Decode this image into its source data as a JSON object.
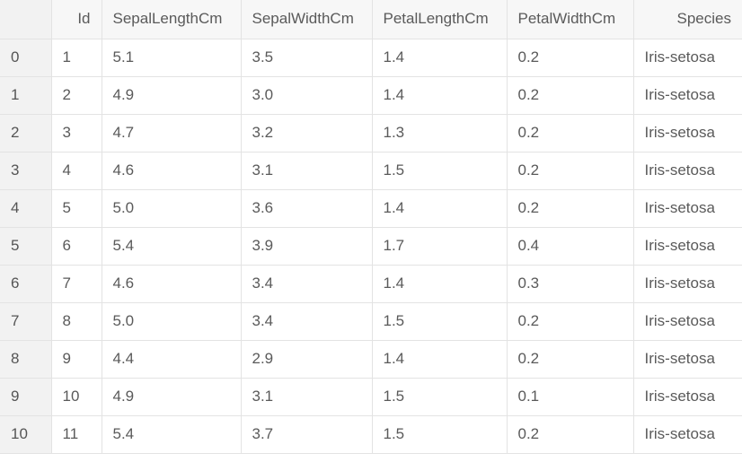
{
  "table": {
    "columns": [
      {
        "label": "",
        "align": "left"
      },
      {
        "label": "Id",
        "align": "right"
      },
      {
        "label": "SepalLengthCm",
        "align": "left"
      },
      {
        "label": "SepalWidthCm",
        "align": "left"
      },
      {
        "label": "PetalLengthCm",
        "align": "left"
      },
      {
        "label": "PetalWidthCm",
        "align": "left"
      },
      {
        "label": "Species",
        "align": "right"
      }
    ],
    "rows": [
      [
        "0",
        "1",
        "5.1",
        "3.5",
        "1.4",
        "0.2",
        "Iris-setosa"
      ],
      [
        "1",
        "2",
        "4.9",
        "3.0",
        "1.4",
        "0.2",
        "Iris-setosa"
      ],
      [
        "2",
        "3",
        "4.7",
        "3.2",
        "1.3",
        "0.2",
        "Iris-setosa"
      ],
      [
        "3",
        "4",
        "4.6",
        "3.1",
        "1.5",
        "0.2",
        "Iris-setosa"
      ],
      [
        "4",
        "5",
        "5.0",
        "3.6",
        "1.4",
        "0.2",
        "Iris-setosa"
      ],
      [
        "5",
        "6",
        "5.4",
        "3.9",
        "1.7",
        "0.4",
        "Iris-setosa"
      ],
      [
        "6",
        "7",
        "4.6",
        "3.4",
        "1.4",
        "0.3",
        "Iris-setosa"
      ],
      [
        "7",
        "8",
        "5.0",
        "3.4",
        "1.5",
        "0.2",
        "Iris-setosa"
      ],
      [
        "8",
        "9",
        "4.4",
        "2.9",
        "1.4",
        "0.2",
        "Iris-setosa"
      ],
      [
        "9",
        "10",
        "4.9",
        "3.1",
        "1.5",
        "0.1",
        "Iris-setosa"
      ],
      [
        "10",
        "11",
        "5.4",
        "3.7",
        "1.5",
        "0.2",
        "Iris-setosa"
      ]
    ]
  }
}
